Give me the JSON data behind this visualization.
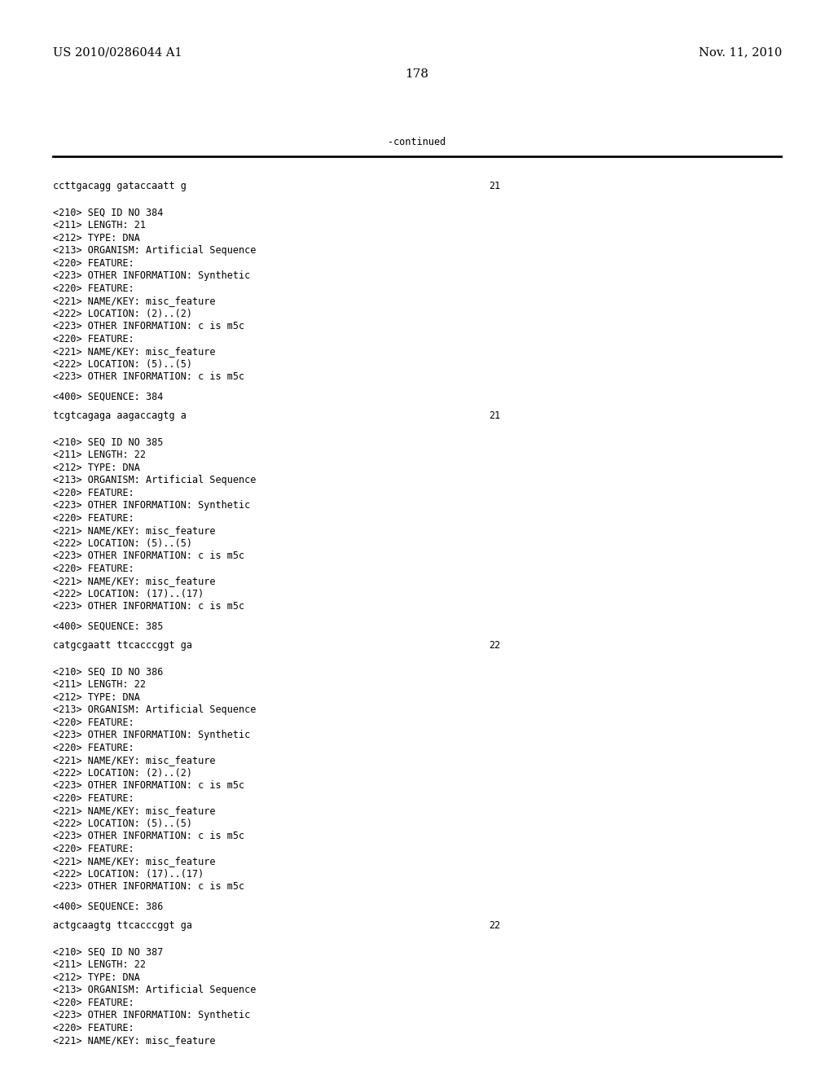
{
  "header_left": "US 2010/0286044 A1",
  "header_right": "Nov. 11, 2010",
  "page_number": "178",
  "continued_label": "-continued",
  "background_color": "#ffffff",
  "text_color": "#000000",
  "font_size_header": 10.5,
  "font_size_body": 8.5,
  "font_size_page": 11.0,
  "lines": [
    {
      "text": "ccttgacagg gataccaatt g",
      "type": "sequence",
      "num": "21"
    },
    {
      "text": "",
      "type": "blank"
    },
    {
      "text": "",
      "type": "blank"
    },
    {
      "text": "<210> SEQ ID NO 384",
      "type": "mono"
    },
    {
      "text": "<211> LENGTH: 21",
      "type": "mono"
    },
    {
      "text": "<212> TYPE: DNA",
      "type": "mono"
    },
    {
      "text": "<213> ORGANISM: Artificial Sequence",
      "type": "mono"
    },
    {
      "text": "<220> FEATURE:",
      "type": "mono"
    },
    {
      "text": "<223> OTHER INFORMATION: Synthetic",
      "type": "mono"
    },
    {
      "text": "<220> FEATURE:",
      "type": "mono"
    },
    {
      "text": "<221> NAME/KEY: misc_feature",
      "type": "mono"
    },
    {
      "text": "<222> LOCATION: (2)..(2)",
      "type": "mono"
    },
    {
      "text": "<223> OTHER INFORMATION: c is m5c",
      "type": "mono"
    },
    {
      "text": "<220> FEATURE:",
      "type": "mono"
    },
    {
      "text": "<221> NAME/KEY: misc_feature",
      "type": "mono"
    },
    {
      "text": "<222> LOCATION: (5)..(5)",
      "type": "mono"
    },
    {
      "text": "<223> OTHER INFORMATION: c is m5c",
      "type": "mono"
    },
    {
      "text": "",
      "type": "blank"
    },
    {
      "text": "<400> SEQUENCE: 384",
      "type": "mono"
    },
    {
      "text": "",
      "type": "blank"
    },
    {
      "text": "tcgtcagaga aagaccagtg a",
      "type": "sequence",
      "num": "21"
    },
    {
      "text": "",
      "type": "blank"
    },
    {
      "text": "",
      "type": "blank"
    },
    {
      "text": "<210> SEQ ID NO 385",
      "type": "mono"
    },
    {
      "text": "<211> LENGTH: 22",
      "type": "mono"
    },
    {
      "text": "<212> TYPE: DNA",
      "type": "mono"
    },
    {
      "text": "<213> ORGANISM: Artificial Sequence",
      "type": "mono"
    },
    {
      "text": "<220> FEATURE:",
      "type": "mono"
    },
    {
      "text": "<223> OTHER INFORMATION: Synthetic",
      "type": "mono"
    },
    {
      "text": "<220> FEATURE:",
      "type": "mono"
    },
    {
      "text": "<221> NAME/KEY: misc_feature",
      "type": "mono"
    },
    {
      "text": "<222> LOCATION: (5)..(5)",
      "type": "mono"
    },
    {
      "text": "<223> OTHER INFORMATION: c is m5c",
      "type": "mono"
    },
    {
      "text": "<220> FEATURE:",
      "type": "mono"
    },
    {
      "text": "<221> NAME/KEY: misc_feature",
      "type": "mono"
    },
    {
      "text": "<222> LOCATION: (17)..(17)",
      "type": "mono"
    },
    {
      "text": "<223> OTHER INFORMATION: c is m5c",
      "type": "mono"
    },
    {
      "text": "",
      "type": "blank"
    },
    {
      "text": "<400> SEQUENCE: 385",
      "type": "mono"
    },
    {
      "text": "",
      "type": "blank"
    },
    {
      "text": "catgcgaatt ttcacccggt ga",
      "type": "sequence",
      "num": "22"
    },
    {
      "text": "",
      "type": "blank"
    },
    {
      "text": "",
      "type": "blank"
    },
    {
      "text": "<210> SEQ ID NO 386",
      "type": "mono"
    },
    {
      "text": "<211> LENGTH: 22",
      "type": "mono"
    },
    {
      "text": "<212> TYPE: DNA",
      "type": "mono"
    },
    {
      "text": "<213> ORGANISM: Artificial Sequence",
      "type": "mono"
    },
    {
      "text": "<220> FEATURE:",
      "type": "mono"
    },
    {
      "text": "<223> OTHER INFORMATION: Synthetic",
      "type": "mono"
    },
    {
      "text": "<220> FEATURE:",
      "type": "mono"
    },
    {
      "text": "<221> NAME/KEY: misc_feature",
      "type": "mono"
    },
    {
      "text": "<222> LOCATION: (2)..(2)",
      "type": "mono"
    },
    {
      "text": "<223> OTHER INFORMATION: c is m5c",
      "type": "mono"
    },
    {
      "text": "<220> FEATURE:",
      "type": "mono"
    },
    {
      "text": "<221> NAME/KEY: misc_feature",
      "type": "mono"
    },
    {
      "text": "<222> LOCATION: (5)..(5)",
      "type": "mono"
    },
    {
      "text": "<223> OTHER INFORMATION: c is m5c",
      "type": "mono"
    },
    {
      "text": "<220> FEATURE:",
      "type": "mono"
    },
    {
      "text": "<221> NAME/KEY: misc_feature",
      "type": "mono"
    },
    {
      "text": "<222> LOCATION: (17)..(17)",
      "type": "mono"
    },
    {
      "text": "<223> OTHER INFORMATION: c is m5c",
      "type": "mono"
    },
    {
      "text": "",
      "type": "blank"
    },
    {
      "text": "<400> SEQUENCE: 386",
      "type": "mono"
    },
    {
      "text": "",
      "type": "blank"
    },
    {
      "text": "actgcaagtg ttcacccggt ga",
      "type": "sequence",
      "num": "22"
    },
    {
      "text": "",
      "type": "blank"
    },
    {
      "text": "",
      "type": "blank"
    },
    {
      "text": "<210> SEQ ID NO 387",
      "type": "mono"
    },
    {
      "text": "<211> LENGTH: 22",
      "type": "mono"
    },
    {
      "text": "<212> TYPE: DNA",
      "type": "mono"
    },
    {
      "text": "<213> ORGANISM: Artificial Sequence",
      "type": "mono"
    },
    {
      "text": "<220> FEATURE:",
      "type": "mono"
    },
    {
      "text": "<223> OTHER INFORMATION: Synthetic",
      "type": "mono"
    },
    {
      "text": "<220> FEATURE:",
      "type": "mono"
    },
    {
      "text": "<221> NAME/KEY: misc_feature",
      "type": "mono"
    }
  ]
}
